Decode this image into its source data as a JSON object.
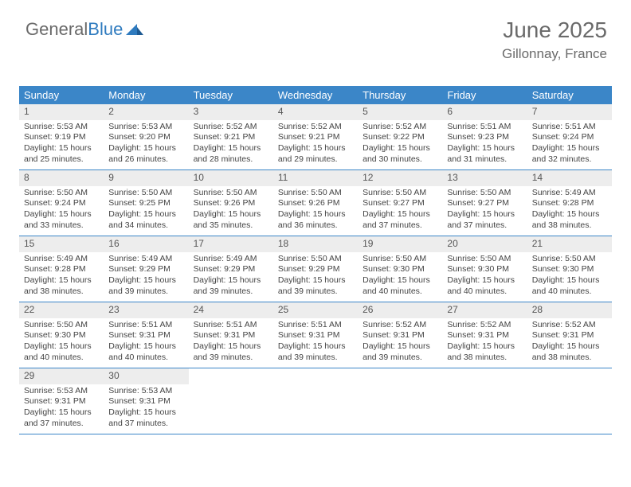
{
  "logo": {
    "part1": "General",
    "part2": "Blue"
  },
  "title": "June 2025",
  "location": "Gillonnay, France",
  "colors": {
    "header_bg": "#3b86c8",
    "daynum_bg": "#ededed",
    "border": "#3b86c8",
    "logo_gray": "#6a6a6a",
    "logo_blue": "#2f7bbf"
  },
  "day_headers": [
    "Sunday",
    "Monday",
    "Tuesday",
    "Wednesday",
    "Thursday",
    "Friday",
    "Saturday"
  ],
  "weeks": [
    [
      {
        "n": "1",
        "sr": "5:53 AM",
        "ss": "9:19 PM",
        "dl": "15 hours and 25 minutes."
      },
      {
        "n": "2",
        "sr": "5:53 AM",
        "ss": "9:20 PM",
        "dl": "15 hours and 26 minutes."
      },
      {
        "n": "3",
        "sr": "5:52 AM",
        "ss": "9:21 PM",
        "dl": "15 hours and 28 minutes."
      },
      {
        "n": "4",
        "sr": "5:52 AM",
        "ss": "9:21 PM",
        "dl": "15 hours and 29 minutes."
      },
      {
        "n": "5",
        "sr": "5:52 AM",
        "ss": "9:22 PM",
        "dl": "15 hours and 30 minutes."
      },
      {
        "n": "6",
        "sr": "5:51 AM",
        "ss": "9:23 PM",
        "dl": "15 hours and 31 minutes."
      },
      {
        "n": "7",
        "sr": "5:51 AM",
        "ss": "9:24 PM",
        "dl": "15 hours and 32 minutes."
      }
    ],
    [
      {
        "n": "8",
        "sr": "5:50 AM",
        "ss": "9:24 PM",
        "dl": "15 hours and 33 minutes."
      },
      {
        "n": "9",
        "sr": "5:50 AM",
        "ss": "9:25 PM",
        "dl": "15 hours and 34 minutes."
      },
      {
        "n": "10",
        "sr": "5:50 AM",
        "ss": "9:26 PM",
        "dl": "15 hours and 35 minutes."
      },
      {
        "n": "11",
        "sr": "5:50 AM",
        "ss": "9:26 PM",
        "dl": "15 hours and 36 minutes."
      },
      {
        "n": "12",
        "sr": "5:50 AM",
        "ss": "9:27 PM",
        "dl": "15 hours and 37 minutes."
      },
      {
        "n": "13",
        "sr": "5:50 AM",
        "ss": "9:27 PM",
        "dl": "15 hours and 37 minutes."
      },
      {
        "n": "14",
        "sr": "5:49 AM",
        "ss": "9:28 PM",
        "dl": "15 hours and 38 minutes."
      }
    ],
    [
      {
        "n": "15",
        "sr": "5:49 AM",
        "ss": "9:28 PM",
        "dl": "15 hours and 38 minutes."
      },
      {
        "n": "16",
        "sr": "5:49 AM",
        "ss": "9:29 PM",
        "dl": "15 hours and 39 minutes."
      },
      {
        "n": "17",
        "sr": "5:49 AM",
        "ss": "9:29 PM",
        "dl": "15 hours and 39 minutes."
      },
      {
        "n": "18",
        "sr": "5:50 AM",
        "ss": "9:29 PM",
        "dl": "15 hours and 39 minutes."
      },
      {
        "n": "19",
        "sr": "5:50 AM",
        "ss": "9:30 PM",
        "dl": "15 hours and 40 minutes."
      },
      {
        "n": "20",
        "sr": "5:50 AM",
        "ss": "9:30 PM",
        "dl": "15 hours and 40 minutes."
      },
      {
        "n": "21",
        "sr": "5:50 AM",
        "ss": "9:30 PM",
        "dl": "15 hours and 40 minutes."
      }
    ],
    [
      {
        "n": "22",
        "sr": "5:50 AM",
        "ss": "9:30 PM",
        "dl": "15 hours and 40 minutes."
      },
      {
        "n": "23",
        "sr": "5:51 AM",
        "ss": "9:31 PM",
        "dl": "15 hours and 40 minutes."
      },
      {
        "n": "24",
        "sr": "5:51 AM",
        "ss": "9:31 PM",
        "dl": "15 hours and 39 minutes."
      },
      {
        "n": "25",
        "sr": "5:51 AM",
        "ss": "9:31 PM",
        "dl": "15 hours and 39 minutes."
      },
      {
        "n": "26",
        "sr": "5:52 AM",
        "ss": "9:31 PM",
        "dl": "15 hours and 39 minutes."
      },
      {
        "n": "27",
        "sr": "5:52 AM",
        "ss": "9:31 PM",
        "dl": "15 hours and 38 minutes."
      },
      {
        "n": "28",
        "sr": "5:52 AM",
        "ss": "9:31 PM",
        "dl": "15 hours and 38 minutes."
      }
    ],
    [
      {
        "n": "29",
        "sr": "5:53 AM",
        "ss": "9:31 PM",
        "dl": "15 hours and 37 minutes."
      },
      {
        "n": "30",
        "sr": "5:53 AM",
        "ss": "9:31 PM",
        "dl": "15 hours and 37 minutes."
      },
      {
        "empty": true
      },
      {
        "empty": true
      },
      {
        "empty": true
      },
      {
        "empty": true
      },
      {
        "empty": true
      }
    ]
  ],
  "labels": {
    "sunrise": "Sunrise:",
    "sunset": "Sunset:",
    "daylight": "Daylight:"
  }
}
